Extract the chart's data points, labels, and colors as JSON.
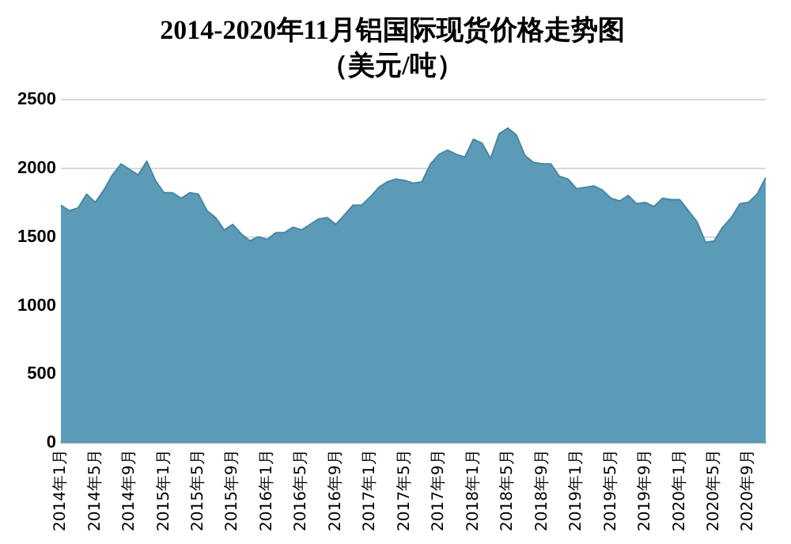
{
  "chart_data": {
    "type": "area",
    "title": "2014-2020年11月铝国际现货价格走势图",
    "subtitle": "（美元/吨）",
    "categories": [
      "2014年1月",
      null,
      null,
      null,
      "2014年5月",
      null,
      null,
      null,
      "2014年9月",
      null,
      null,
      null,
      "2015年1月",
      null,
      null,
      null,
      "2015年5月",
      null,
      null,
      null,
      "2015年9月",
      null,
      null,
      null,
      "2016年1月",
      null,
      null,
      null,
      "2016年5月",
      null,
      null,
      null,
      "2016年9月",
      null,
      null,
      null,
      "2017年1月",
      null,
      null,
      null,
      "2017年5月",
      null,
      null,
      null,
      "2017年9月",
      null,
      null,
      null,
      "2018年1月",
      null,
      null,
      null,
      "2018年5月",
      null,
      null,
      null,
      "2018年9月",
      null,
      null,
      null,
      "2019年1月",
      null,
      null,
      null,
      "2019年5月",
      null,
      null,
      null,
      "2019年9月",
      null,
      null,
      null,
      "2020年1月",
      null,
      null,
      null,
      "2020年5月",
      null,
      null,
      null,
      "2020年9月",
      null,
      null
    ],
    "series": [
      {
        "color": "#5b9bb8",
        "values": [
          1730,
          1690,
          1710,
          1810,
          1750,
          1840,
          1950,
          2030,
          1990,
          1950,
          2050,
          1910,
          1820,
          1820,
          1780,
          1820,
          1810,
          1690,
          1640,
          1550,
          1590,
          1520,
          1470,
          1500,
          1480,
          1530,
          1530,
          1570,
          1550,
          1590,
          1630,
          1640,
          1590,
          1660,
          1730,
          1730,
          1790,
          1860,
          1900,
          1920,
          1910,
          1890,
          1900,
          2030,
          2100,
          2130,
          2100,
          2080,
          2210,
          2180,
          2070,
          2250,
          2290,
          2240,
          2090,
          2040,
          2030,
          2030,
          1940,
          1920,
          1850,
          1860,
          1870,
          1840,
          1780,
          1760,
          1800,
          1740,
          1750,
          1720,
          1780,
          1770,
          1770,
          1690,
          1610,
          1460,
          1470,
          1570,
          1640,
          1740,
          1750,
          1810,
          1930
        ]
      }
    ],
    "ylim": [
      0,
      2500
    ],
    "yticks": [
      0,
      500,
      1000,
      1500,
      2000,
      2500
    ],
    "grid": "y",
    "legend": false
  }
}
